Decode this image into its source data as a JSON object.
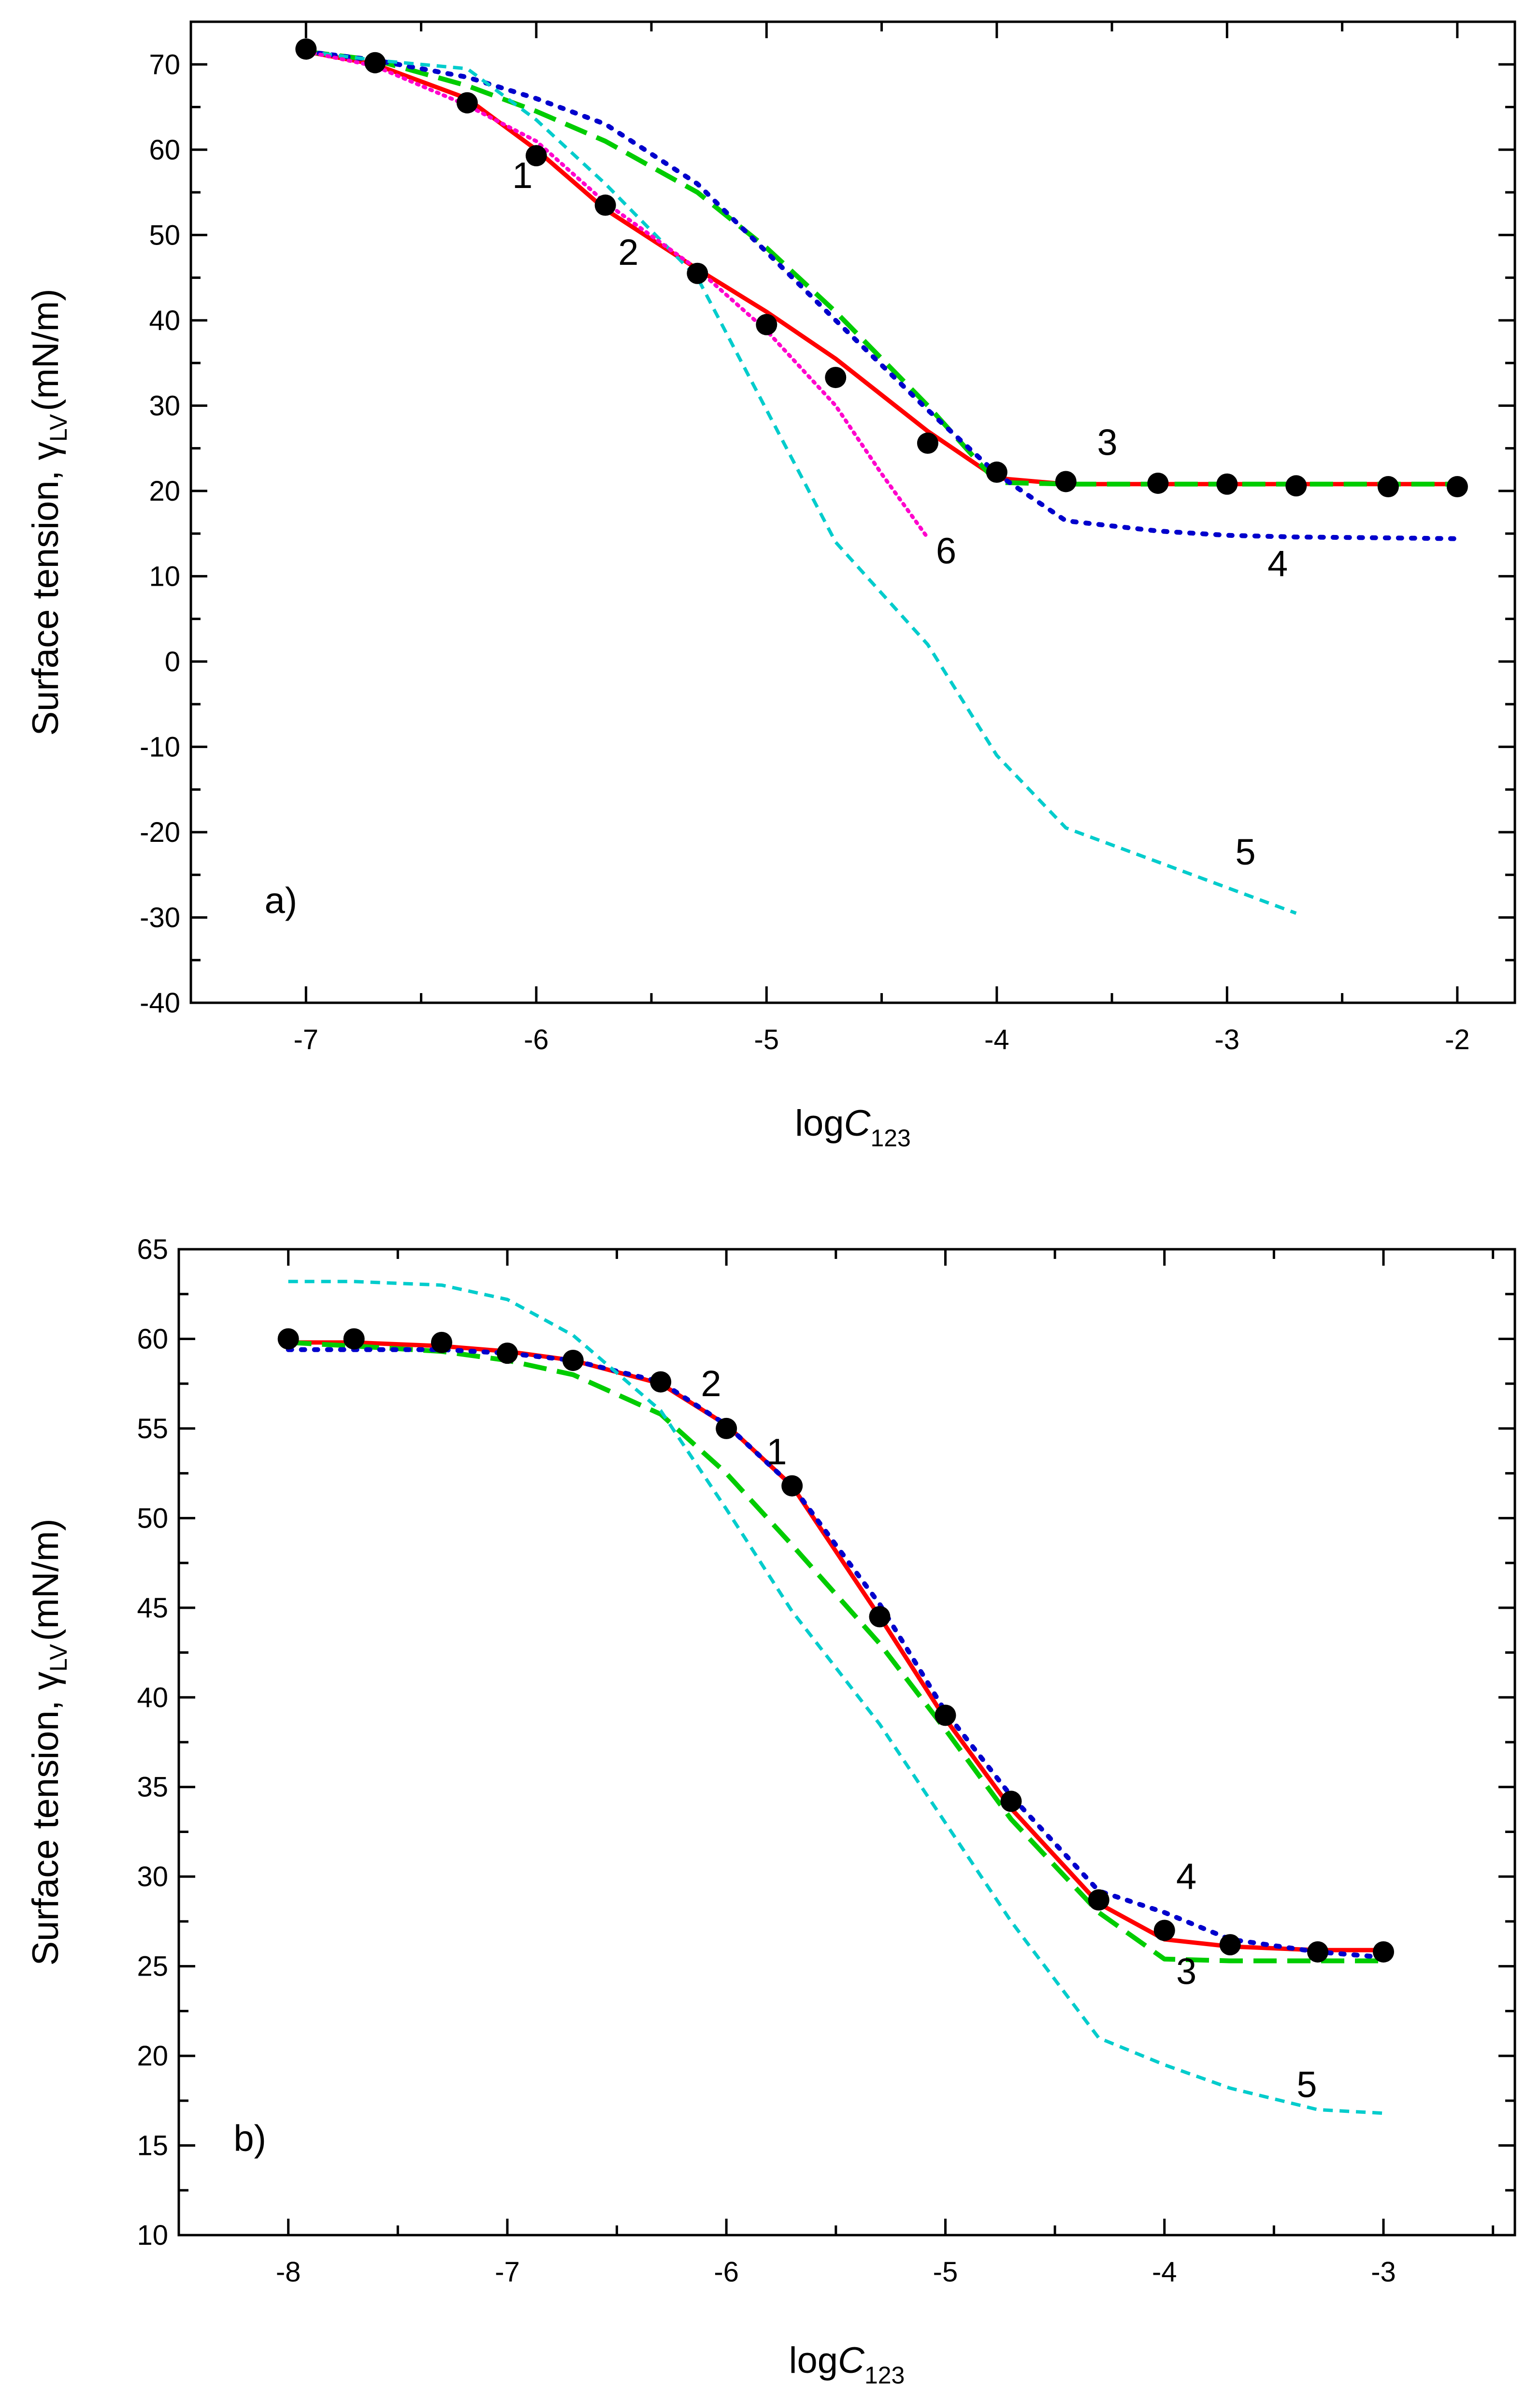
{
  "figure_title": "",
  "chart_data": [
    {
      "type": "line",
      "panel_label": "a)",
      "xlabel": "logC123",
      "ylabel": "Surface tension, γLV (mN/m)",
      "xlabel_parts": {
        "main": "log",
        "italic": "C",
        "sub": "123"
      },
      "ylabel_parts": {
        "main": "Surface tension, γ",
        "sub": "LV",
        "tail": "(mN/m)"
      },
      "xlim": [
        -7.5,
        -1.75
      ],
      "ylim": [
        -40,
        75
      ],
      "xticks": [
        -7,
        -6,
        -5,
        -4,
        -3,
        -2
      ],
      "yticks": [
        -40,
        -30,
        -20,
        -10,
        0,
        10,
        20,
        30,
        40,
        50,
        60,
        70
      ],
      "xtick_labels": [
        "-7",
        "-6",
        "-5",
        "-4",
        "-3",
        "-2"
      ],
      "ytick_labels": [
        "-40",
        "-30",
        "-20",
        "-10",
        "0",
        "10",
        "20",
        "30",
        "40",
        "50",
        "60",
        "70"
      ],
      "grid": false,
      "series": [
        {
          "name": "1",
          "style": "points",
          "color": "#000000",
          "x": [
            -7,
            -6.7,
            -6.3,
            -6,
            -5.7,
            -5.3,
            -5,
            -4.7,
            -4.3,
            -4,
            -3.7,
            -3.3,
            -3,
            -2.7,
            -2.3,
            -2
          ],
          "y": [
            71.8,
            70.2,
            65.5,
            59.3,
            53.5,
            45.5,
            39.5,
            33.3,
            25.6,
            22.2,
            21.1,
            20.9,
            20.8,
            20.6,
            20.5,
            20.5
          ]
        },
        {
          "name": "2",
          "style": "solid",
          "color": "#ff0000",
          "x": [
            -7,
            -6.7,
            -6.3,
            -6,
            -5.7,
            -5.3,
            -5,
            -4.7,
            -4.3,
            -4,
            -3.7,
            -3.3,
            -3,
            -2.7,
            -2.3,
            -2
          ],
          "y": [
            71.5,
            70,
            66,
            60,
            53,
            46,
            41,
            35.5,
            27,
            21.5,
            20.8,
            20.8,
            20.8,
            20.8,
            20.8,
            20.8
          ]
        },
        {
          "name": "3",
          "style": "dashed",
          "color": "#00cc00",
          "x": [
            -7,
            -6.7,
            -6.3,
            -6,
            -5.7,
            -5.3,
            -5,
            -4.7,
            -4.3,
            -4,
            -3.7,
            -3.3,
            -3,
            -2.7,
            -2.3,
            -2
          ],
          "y": [
            71.5,
            70.5,
            67.5,
            64.5,
            61,
            55,
            48.5,
            41,
            30,
            21,
            20.8,
            20.8,
            20.8,
            20.8,
            20.8,
            20.8
          ]
        },
        {
          "name": "4",
          "style": "dotted",
          "color": "#0000cc",
          "x": [
            -7,
            -6.7,
            -6.3,
            -6,
            -5.7,
            -5.3,
            -5,
            -4.7,
            -4.3,
            -4,
            -3.7,
            -3.3,
            -3,
            -2.7,
            -2.3,
            -2
          ],
          "y": [
            71.5,
            70.5,
            68.5,
            66,
            63,
            56,
            48,
            40,
            29.5,
            22,
            16.5,
            15.3,
            14.8,
            14.6,
            14.5,
            14.4
          ]
        },
        {
          "name": "5",
          "style": "short-dashed",
          "color": "#00cccc",
          "x": [
            -7,
            -6.7,
            -6.3,
            -6,
            -5.7,
            -5.3,
            -5,
            -4.7,
            -4.3,
            -4,
            -3.7,
            -3.3,
            -3,
            -2.7
          ],
          "y": [
            71.5,
            70.5,
            69.5,
            63.5,
            56,
            45,
            29.5,
            14,
            2,
            -11,
            -19.5,
            -23.5,
            -26.5,
            -29.5
          ]
        },
        {
          "name": "6",
          "style": "fine-dotted",
          "color": "#ff00cc",
          "x": [
            -7,
            -6.7,
            -6.3,
            -6,
            -5.7,
            -5.3,
            -5,
            -4.7,
            -4.5,
            -4.3
          ],
          "y": [
            71.5,
            69.8,
            65.2,
            61,
            53.8,
            46,
            38.8,
            30,
            22,
            14.5
          ]
        }
      ],
      "curve_labels": [
        {
          "text": "1",
          "x": -6.06,
          "y": 55.5
        },
        {
          "text": "2",
          "x": -5.6,
          "y": 46.5
        },
        {
          "text": "3",
          "x": -3.52,
          "y": 24.2
        },
        {
          "text": "4",
          "x": -2.78,
          "y": 10
        },
        {
          "text": "5",
          "x": -2.92,
          "y": -23.8
        },
        {
          "text": "6",
          "x": -4.22,
          "y": 11.5
        }
      ],
      "panel_label_pos": {
        "x": -7.18,
        "y": -29.5
      }
    },
    {
      "type": "line",
      "panel_label": "b)",
      "xlabel": "logC123",
      "ylabel": "Surface tension, γLV (mN/m)",
      "xlabel_parts": {
        "main": "log",
        "italic": "C",
        "sub": "123"
      },
      "ylabel_parts": {
        "main": "Surface tension, γ",
        "sub": "LV",
        "tail": "(mN/m)"
      },
      "xlim": [
        -8.5,
        -2.4
      ],
      "ylim": [
        10,
        65
      ],
      "xticks": [
        -8,
        -7,
        -6,
        -5,
        -4,
        -3
      ],
      "yticks": [
        10,
        15,
        20,
        25,
        30,
        35,
        40,
        45,
        50,
        55,
        60,
        65
      ],
      "xtick_labels": [
        "-8",
        "-7",
        "-6",
        "-5",
        "-4",
        "-3"
      ],
      "ytick_labels": [
        "10",
        "15",
        "20",
        "25",
        "30",
        "35",
        "40",
        "45",
        "50",
        "55",
        "60",
        "65"
      ],
      "grid": false,
      "series": [
        {
          "name": "1",
          "style": "points",
          "color": "#000000",
          "x": [
            -8,
            -7.7,
            -7.3,
            -7,
            -6.7,
            -6.3,
            -6,
            -5.7,
            -5.3,
            -5,
            -4.7,
            -4.3,
            -4,
            -3.7,
            -3.3,
            -3
          ],
          "y": [
            60,
            60,
            59.8,
            59.2,
            58.8,
            57.6,
            55,
            51.8,
            44.5,
            39,
            34.2,
            28.7,
            27,
            26.2,
            25.8,
            25.8
          ]
        },
        {
          "name": "2",
          "style": "solid",
          "color": "#ff0000",
          "x": [
            -8,
            -7.7,
            -7.3,
            -7,
            -6.7,
            -6.3,
            -6,
            -5.7,
            -5.3,
            -5,
            -4.7,
            -4.3,
            -4,
            -3.7,
            -3.3,
            -3
          ],
          "y": [
            59.8,
            59.8,
            59.6,
            59.3,
            58.8,
            57.5,
            55.2,
            51.8,
            44.5,
            38.8,
            33.8,
            28.5,
            26.5,
            26.1,
            25.9,
            25.9
          ]
        },
        {
          "name": "3",
          "style": "dashed",
          "color": "#00cc00",
          "x": [
            -8,
            -7.7,
            -7.3,
            -7,
            -6.7,
            -6.3,
            -6,
            -5.7,
            -5.3,
            -5,
            -4.7,
            -4.3,
            -4,
            -3.7,
            -3.3,
            -3
          ],
          "y": [
            59.8,
            59.6,
            59.3,
            58.8,
            58,
            55.8,
            52.5,
            48.5,
            43,
            38.2,
            33.2,
            28,
            25.4,
            25.3,
            25.3,
            25.3
          ]
        },
        {
          "name": "4",
          "style": "dotted",
          "color": "#0000cc",
          "x": [
            -8,
            -7.7,
            -7.3,
            -7,
            -6.7,
            -6.3,
            -6,
            -5.7,
            -5.3,
            -5,
            -4.7,
            -4.3,
            -4,
            -3.7,
            -3.3,
            -3
          ],
          "y": [
            59.4,
            59.4,
            59.4,
            59.2,
            58.8,
            57.6,
            55.2,
            51.8,
            45.2,
            39.2,
            34.5,
            29.2,
            28,
            26.5,
            25.8,
            25.5
          ]
        },
        {
          "name": "5",
          "style": "short-dashed",
          "color": "#00cccc",
          "x": [
            -8,
            -7.7,
            -7.3,
            -7,
            -6.7,
            -6.3,
            -6,
            -5.7,
            -5.3,
            -5,
            -4.7,
            -4.3,
            -4,
            -3.7,
            -3.3,
            -3
          ],
          "y": [
            63.2,
            63.2,
            63,
            62.2,
            60.2,
            56,
            50.5,
            44.8,
            38.5,
            33,
            27.5,
            21,
            19.5,
            18.2,
            17,
            16.8
          ]
        }
      ],
      "curve_labels": [
        {
          "text": "1",
          "x": -5.77,
          "y": 53
        },
        {
          "text": "2",
          "x": -6.07,
          "y": 56.8
        },
        {
          "text": "3",
          "x": -3.9,
          "y": 24.0
        },
        {
          "text": "4",
          "x": -3.9,
          "y": 29.3
        },
        {
          "text": "5",
          "x": -3.35,
          "y": 17.7
        }
      ],
      "panel_label_pos": {
        "x": -8.25,
        "y": 14.7
      }
    }
  ]
}
